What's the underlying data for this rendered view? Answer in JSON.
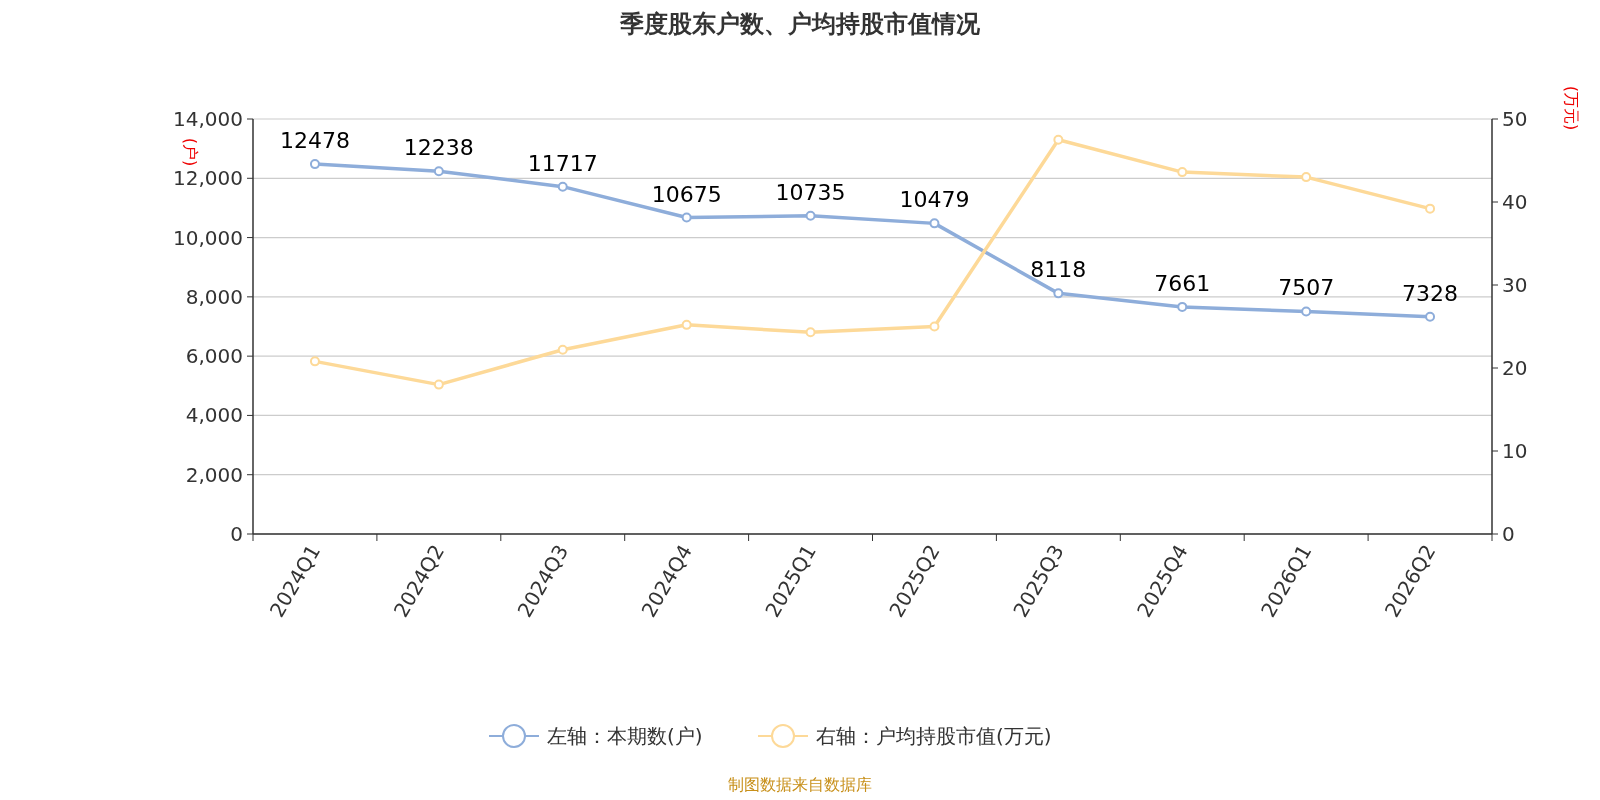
{
  "chart_data": {
    "type": "line",
    "title": "季度股东户数、户均持股市值情况",
    "ylabel": "(户)",
    "y2label": "(万元)",
    "categories": [
      "2024Q1",
      "2024Q2",
      "2024Q3",
      "2024Q4",
      "2025Q1",
      "2025Q2",
      "2025Q3",
      "2025Q4",
      "2026Q1",
      "2026Q2"
    ],
    "series": [
      {
        "name": "左轴：本期数(户)",
        "color": "#8eadda",
        "values": [
          12478,
          12238,
          11717,
          10675,
          10735,
          10479,
          8118,
          7661,
          7507,
          7328
        ],
        "value_labels": [
          "12478",
          "12238",
          "11717",
          "10675",
          "10735",
          "10479",
          "8118",
          "7661",
          "7507",
          "7328"
        ]
      },
      {
        "name": "右轴：户均持股市值(万元)",
        "color": "#fdd998",
        "axis": "y2",
        "values": [
          20.8,
          18.0,
          22.2,
          25.2,
          24.3,
          25.0,
          47.5,
          43.6,
          43.0,
          39.2
        ]
      }
    ],
    "ylim": [
      0,
      14000
    ],
    "yticks": [
      0,
      {
        "value": 2000,
        "label": "2,000"
      },
      {
        "value": 4000,
        "label": "4,000"
      },
      {
        "value": 6000,
        "label": "6,000"
      },
      {
        "value": 8000,
        "label": "8,000"
      },
      {
        "value": 10000,
        "label": "10,000"
      },
      {
        "value": 12000,
        "label": "12,000"
      },
      {
        "value": 14000,
        "label": "14,000"
      }
    ],
    "y2lim": [
      0,
      50
    ],
    "y2ticks": [
      0,
      10,
      20,
      30,
      40,
      50
    ],
    "grid": "y",
    "legend": "bottom",
    "marker": "circle",
    "annotations": [
      "制图数据来自数据库"
    ]
  }
}
